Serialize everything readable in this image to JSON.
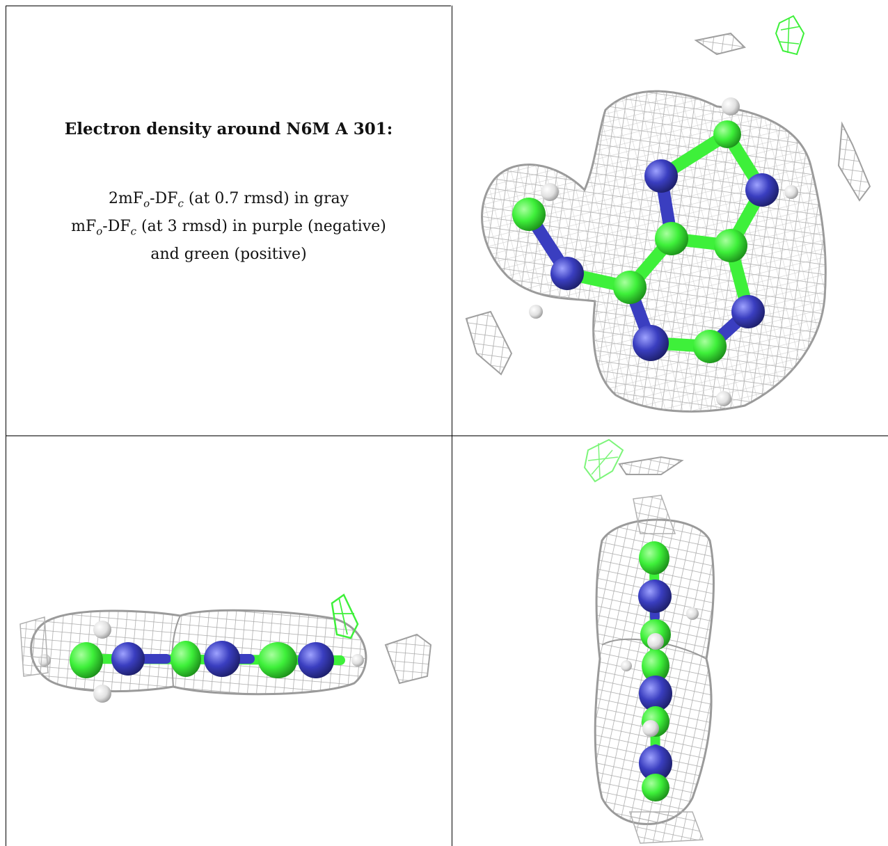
{
  "caption": {
    "title": "Electron density around N6M A 301:",
    "line1": {
      "a": "2mF",
      "b": "o",
      "c": "-DF",
      "d": "c",
      "e": " (at 0.7 rmsd) in gray"
    },
    "line2": {
      "a": "mF",
      "b": "o",
      "c": "-DF",
      "d": "c",
      "e": " (at 3 rmsd) in purple (negative)"
    },
    "line3": "and green (positive)"
  },
  "colors": {
    "mesh_gray": "#a9a9a9",
    "positive_green": "#3ef03a",
    "negative_blue": "#3a3ec0",
    "hydrogen": "#e8e8e8",
    "border": "#000000"
  },
  "panels": [
    {
      "name": "top-view",
      "content": "molecule-ring-top"
    },
    {
      "name": "side-view-horizontal",
      "content": "molecule-edge-horizontal"
    },
    {
      "name": "side-view-vertical",
      "content": "molecule-edge-vertical"
    }
  ]
}
